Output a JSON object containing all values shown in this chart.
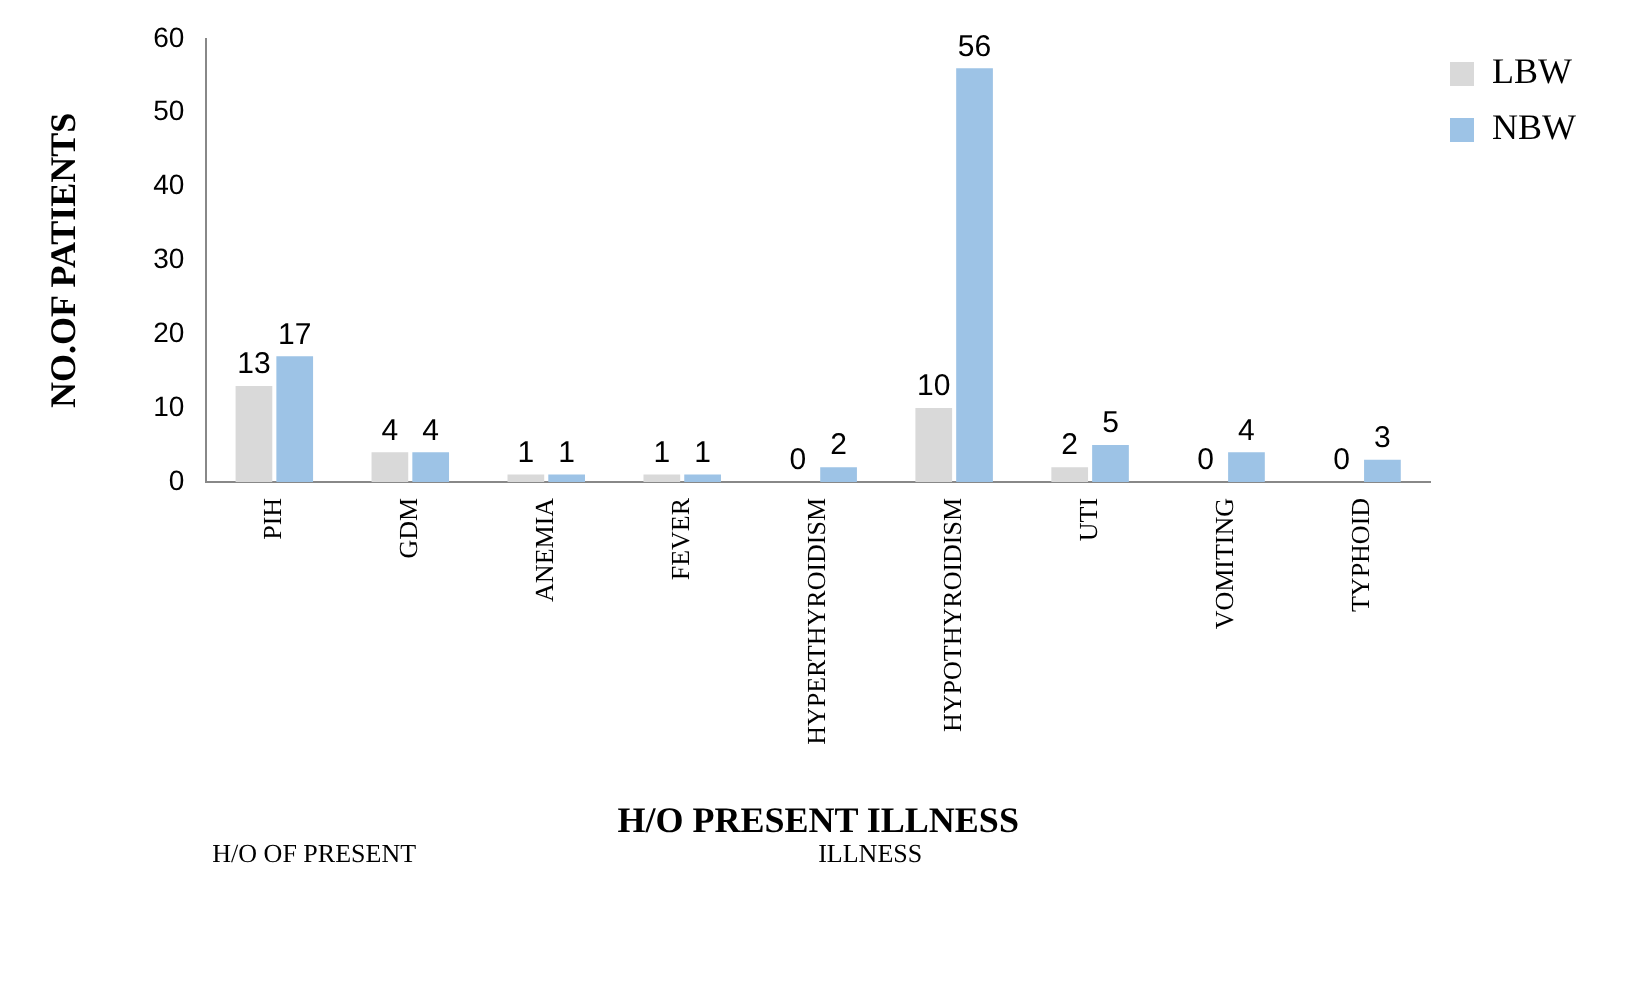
{
  "chart_data": {
    "type": "bar",
    "xlabel": "H/O PRESENT ILLNESS",
    "ylabel": "NO.OF PATIENTS",
    "categories": [
      "PIH",
      "GDM",
      "ANEMIA",
      "FEVER",
      "HYPERTHYROIDISM",
      "HYPOTHYROIDISM",
      "UTI",
      "VOMITING",
      "TYPHOID"
    ],
    "series": [
      {
        "name": "LBW",
        "color": "#d9d9d9",
        "values": [
          13,
          4,
          1,
          1,
          0,
          10,
          2,
          0,
          0
        ]
      },
      {
        "name": "NBW",
        "color": "#9dc3e6",
        "values": [
          17,
          4,
          1,
          1,
          2,
          56,
          5,
          4,
          3
        ]
      }
    ],
    "ylim": [
      0,
      60
    ],
    "yticks": [
      0,
      10,
      20,
      30,
      40,
      50,
      60
    ],
    "grid": false,
    "legend": "top right",
    "data_labels": true,
    "annotations": [
      "H/O OF PRESENT",
      "ILLNESS"
    ]
  }
}
